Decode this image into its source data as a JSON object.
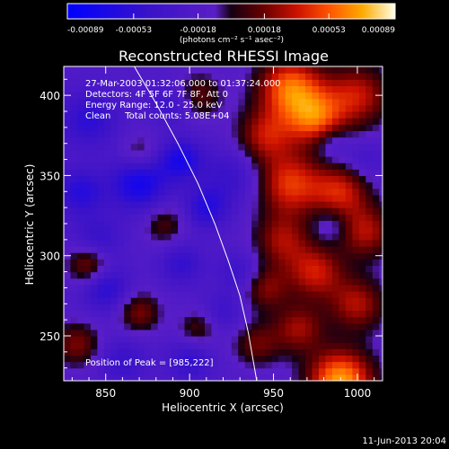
{
  "chart_data": {
    "type": "heatmap",
    "title": "Reconstructed RHESSI Image",
    "xlabel": "Heliocentric X (arcsec)",
    "ylabel": "Heliocentric Y (arcsec)",
    "xlim": [
      825,
      1015
    ],
    "ylim": [
      222,
      418
    ],
    "xticks": [
      850,
      900,
      950,
      1000
    ],
    "yticks": [
      250,
      300,
      350,
      400
    ],
    "colorbar": {
      "ticks": [
        "-0.00089",
        "-0.00053",
        "-0.00018",
        "0.00018",
        "0.00053",
        "0.00089"
      ],
      "range": [
        -0.00089,
        0.00089
      ],
      "unit_label": "(photons cm⁻² s⁻¹ asec⁻²)"
    },
    "annotations": [
      "27-Mar-2003 01:32:06.000 to 01:37:24.000",
      "Detectors: 4F 5F 6F 7F 8F, Att 0",
      "Energy Range: 12.0 - 25.0 keV",
      "Clean     Total counts: 5.08E+04"
    ],
    "peak_text": "Position of Peak = [985,222]",
    "peak": [
      985,
      222
    ],
    "limb_curve": [
      [
        867,
        418
      ],
      [
        880,
        395
      ],
      [
        893,
        370
      ],
      [
        905,
        345
      ],
      [
        915,
        320
      ],
      [
        923,
        297
      ],
      [
        930,
        275
      ],
      [
        935,
        252
      ],
      [
        940,
        222
      ]
    ],
    "blobs": [
      {
        "x": 990,
        "y": 222,
        "v": 1.0,
        "s": 14
      },
      {
        "x": 960,
        "y": 405,
        "v": 0.85,
        "s": 14
      },
      {
        "x": 975,
        "y": 385,
        "v": 0.7,
        "s": 12
      },
      {
        "x": 1000,
        "y": 400,
        "v": 0.6,
        "s": 14
      },
      {
        "x": 945,
        "y": 375,
        "v": 0.55,
        "s": 12
      },
      {
        "x": 960,
        "y": 345,
        "v": 0.7,
        "s": 14
      },
      {
        "x": 990,
        "y": 340,
        "v": 0.6,
        "s": 12
      },
      {
        "x": 1005,
        "y": 315,
        "v": 0.55,
        "s": 12
      },
      {
        "x": 955,
        "y": 310,
        "v": 0.5,
        "s": 12
      },
      {
        "x": 975,
        "y": 290,
        "v": 0.6,
        "s": 12
      },
      {
        "x": 1000,
        "y": 270,
        "v": 0.55,
        "s": 12
      },
      {
        "x": 945,
        "y": 280,
        "v": 0.45,
        "s": 10
      },
      {
        "x": 965,
        "y": 255,
        "v": 0.5,
        "s": 11
      },
      {
        "x": 940,
        "y": 245,
        "v": 0.4,
        "s": 10
      },
      {
        "x": 840,
        "y": 295,
        "v": 0.55,
        "s": 9
      },
      {
        "x": 833,
        "y": 245,
        "v": 0.45,
        "s": 10
      },
      {
        "x": 870,
        "y": 265,
        "v": 0.45,
        "s": 9
      },
      {
        "x": 905,
        "y": 255,
        "v": 0.35,
        "s": 8
      },
      {
        "x": 885,
        "y": 320,
        "v": 0.35,
        "s": 9
      },
      {
        "x": 905,
        "y": 400,
        "v": 0.4,
        "s": 10
      },
      {
        "x": 870,
        "y": 365,
        "v": 0.3,
        "s": 8
      },
      {
        "x": 925,
        "y": 350,
        "v": -0.3,
        "s": 12
      },
      {
        "x": 870,
        "y": 345,
        "v": -0.6,
        "s": 12
      },
      {
        "x": 840,
        "y": 385,
        "v": -0.4,
        "s": 12
      },
      {
        "x": 835,
        "y": 340,
        "v": -0.45,
        "s": 10
      },
      {
        "x": 845,
        "y": 310,
        "v": -0.35,
        "s": 10
      },
      {
        "x": 895,
        "y": 360,
        "v": -0.55,
        "s": 9
      },
      {
        "x": 910,
        "y": 330,
        "v": -0.45,
        "s": 9
      },
      {
        "x": 850,
        "y": 280,
        "v": -0.45,
        "s": 10
      },
      {
        "x": 895,
        "y": 295,
        "v": -0.35,
        "s": 9
      },
      {
        "x": 860,
        "y": 235,
        "v": -0.3,
        "s": 10
      },
      {
        "x": 900,
        "y": 235,
        "v": -0.35,
        "s": 9
      },
      {
        "x": 890,
        "y": 395,
        "v": -0.3,
        "s": 9
      },
      {
        "x": 930,
        "y": 290,
        "v": -0.3,
        "s": 9
      },
      {
        "x": 920,
        "y": 265,
        "v": -0.25,
        "s": 9
      },
      {
        "x": 985,
        "y": 370,
        "v": -0.25,
        "s": 8
      },
      {
        "x": 1005,
        "y": 360,
        "v": -0.2,
        "s": 8
      },
      {
        "x": 985,
        "y": 320,
        "v": -0.2,
        "s": 8
      }
    ]
  },
  "footer": {
    "date": "11-Jun-2013 20:04"
  }
}
